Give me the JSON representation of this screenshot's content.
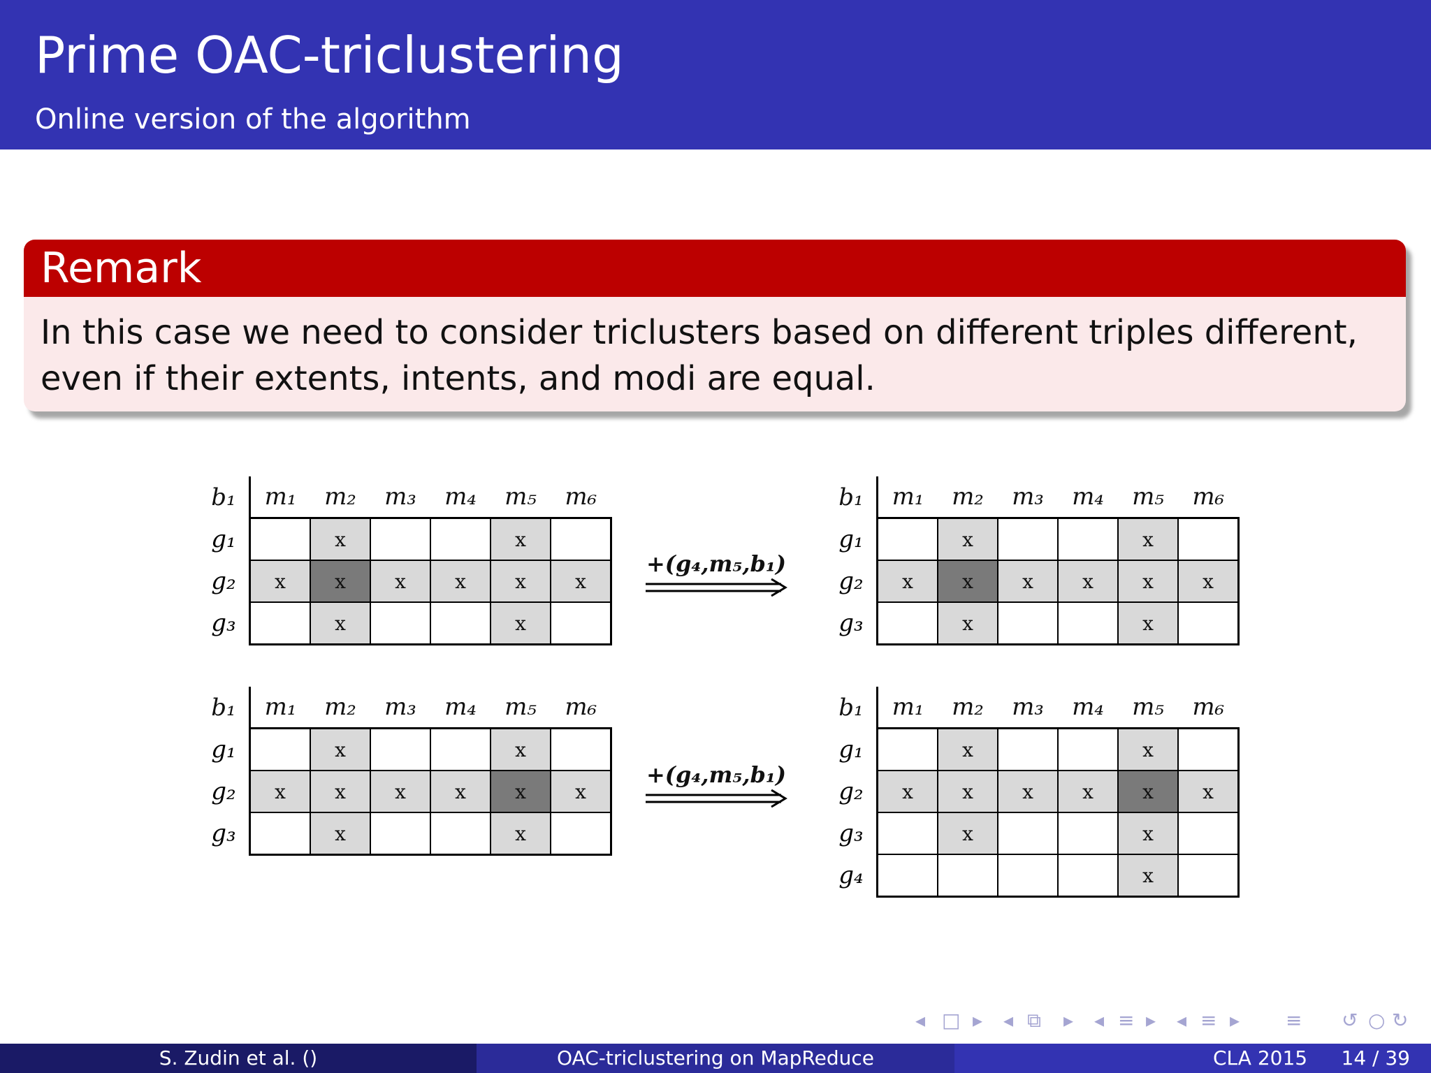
{
  "header": {
    "title": "Prime OAC-triclustering",
    "subtitle": "Online version of the algorithm"
  },
  "remark": {
    "heading": "Remark",
    "body": "In this case we need to consider triclusters based on different triples different, even if their extents, intents, and modi are equal."
  },
  "diagrams": [
    {
      "left": {
        "corner": "b₁",
        "cols": [
          "m₁",
          "m₂",
          "m₃",
          "m₄",
          "m₅",
          "m₆"
        ],
        "rows": [
          {
            "label": "g₁",
            "cells": [
              "",
              "x",
              "",
              "",
              "x",
              ""
            ],
            "shade": [
              "",
              "l",
              "",
              "",
              "l",
              ""
            ]
          },
          {
            "label": "g₂",
            "cells": [
              "x",
              "x",
              "x",
              "x",
              "x",
              "x"
            ],
            "shade": [
              "l",
              "d",
              "l",
              "l",
              "l",
              "l"
            ]
          },
          {
            "label": "g₃",
            "cells": [
              "",
              "x",
              "",
              "",
              "x",
              ""
            ],
            "shade": [
              "",
              "l",
              "",
              "",
              "l",
              ""
            ]
          }
        ]
      },
      "arrow": "+(g₄,m₅,b₁)",
      "right": {
        "corner": "b₁",
        "cols": [
          "m₁",
          "m₂",
          "m₃",
          "m₄",
          "m₅",
          "m₆"
        ],
        "rows": [
          {
            "label": "g₁",
            "cells": [
              "",
              "x",
              "",
              "",
              "x",
              ""
            ],
            "shade": [
              "",
              "l",
              "",
              "",
              "l",
              ""
            ]
          },
          {
            "label": "g₂",
            "cells": [
              "x",
              "x",
              "x",
              "x",
              "x",
              "x"
            ],
            "shade": [
              "l",
              "d",
              "l",
              "l",
              "l",
              "l"
            ]
          },
          {
            "label": "g₃",
            "cells": [
              "",
              "x",
              "",
              "",
              "x",
              ""
            ],
            "shade": [
              "",
              "l",
              "",
              "",
              "l",
              ""
            ]
          }
        ]
      }
    },
    {
      "left": {
        "corner": "b₁",
        "cols": [
          "m₁",
          "m₂",
          "m₃",
          "m₄",
          "m₅",
          "m₆"
        ],
        "rows": [
          {
            "label": "g₁",
            "cells": [
              "",
              "x",
              "",
              "",
              "x",
              ""
            ],
            "shade": [
              "",
              "l",
              "",
              "",
              "l",
              ""
            ]
          },
          {
            "label": "g₂",
            "cells": [
              "x",
              "x",
              "x",
              "x",
              "x",
              "x"
            ],
            "shade": [
              "l",
              "l",
              "l",
              "l",
              "d",
              "l"
            ]
          },
          {
            "label": "g₃",
            "cells": [
              "",
              "x",
              "",
              "",
              "x",
              ""
            ],
            "shade": [
              "",
              "l",
              "",
              "",
              "l",
              ""
            ]
          }
        ]
      },
      "arrow": "+(g₄,m₅,b₁)",
      "right": {
        "corner": "b₁",
        "cols": [
          "m₁",
          "m₂",
          "m₃",
          "m₄",
          "m₅",
          "m₆"
        ],
        "rows": [
          {
            "label": "g₁",
            "cells": [
              "",
              "x",
              "",
              "",
              "x",
              ""
            ],
            "shade": [
              "",
              "l",
              "",
              "",
              "l",
              ""
            ]
          },
          {
            "label": "g₂",
            "cells": [
              "x",
              "x",
              "x",
              "x",
              "x",
              "x"
            ],
            "shade": [
              "l",
              "l",
              "l",
              "l",
              "d",
              "l"
            ]
          },
          {
            "label": "g₃",
            "cells": [
              "",
              "x",
              "",
              "",
              "x",
              ""
            ],
            "shade": [
              "",
              "l",
              "",
              "",
              "l",
              ""
            ]
          },
          {
            "label": "g₄",
            "cells": [
              "",
              "",
              "",
              "",
              "x",
              ""
            ],
            "shade": [
              "",
              "",
              "",
              "",
              "l",
              ""
            ]
          }
        ]
      }
    }
  ],
  "footer": {
    "authors": "S. Zudin et al.  ()",
    "talk": "OAC-triclustering on MapReduce",
    "conference": "CLA 2015",
    "page": "14 / 39"
  },
  "nav_icons": [
    "prev-frame-icon",
    "frame-icon",
    "next-frame-icon",
    "prev-subsection-icon",
    "subsection-icon",
    "next-subsection-icon",
    "prev-section-icon",
    "section-icon",
    "next-section-icon",
    "toc-icon",
    "search-icon",
    "back-forward-icon"
  ]
}
